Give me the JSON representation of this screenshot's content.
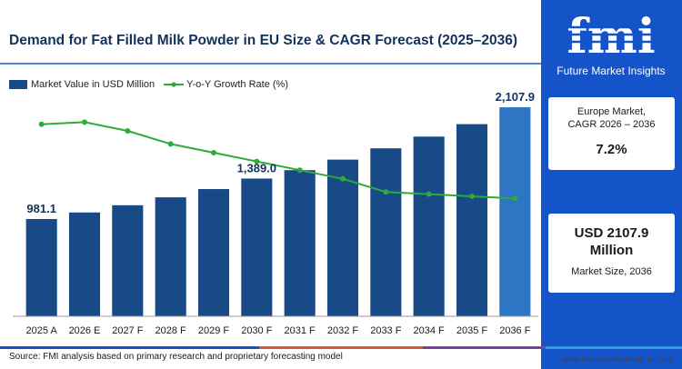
{
  "title": "Demand for Fat Filled Milk Powder in EU Size & CAGR Forecast (2025–2036)",
  "colors": {
    "bar": "#174a87",
    "bar_highlight": "#2e75c4",
    "line": "#2eaa3a",
    "panel": "#1553c9"
  },
  "chart_data": {
    "type": "bar",
    "categories": [
      "2025 A",
      "2026 E",
      "2027 F",
      "2028 F",
      "2029 F",
      "2030 F",
      "2031 F",
      "2032 F",
      "2033 F",
      "2034 F",
      "2035 F",
      "2036 F"
    ],
    "series": [
      {
        "name": "Market Value in USD Million",
        "type": "bar",
        "values": [
          981.1,
          1047,
          1120,
          1200,
          1283,
          1389.0,
          1474,
          1580,
          1694,
          1812,
          1938,
          2107.9
        ]
      },
      {
        "name": "Y-o-Y Growth Rate (%)",
        "type": "line",
        "values": [
          8.8,
          8.9,
          8.5,
          7.9,
          7.5,
          7.1,
          6.7,
          6.3,
          5.7,
          5.6,
          5.5,
          5.4
        ]
      }
    ],
    "data_labels": [
      {
        "index": 0,
        "text": "981.1"
      },
      {
        "index": 5,
        "text": "1,389.0"
      },
      {
        "index": 11,
        "text": "2,107.9"
      }
    ],
    "highlight_index": 11,
    "ylim": [
      0,
      2200
    ],
    "y2lim": [
      0,
      10
    ],
    "grid": false,
    "legend_position": "top-left"
  },
  "brand": {
    "logo_text": "fmi",
    "tagline": "Future Market Insights"
  },
  "cards": {
    "cagr_label_line1": "Europe Market,",
    "cagr_label_line2": "CAGR 2026 – 2036",
    "cagr_value": "7.2%",
    "size_value_line1": "USD 2107.9",
    "size_value_line2": "Million",
    "size_label": "Market Size, 2036"
  },
  "footer": {
    "source": "Source: FMI analysis based on primary research and proprietary forecasting model",
    "website": "www.futuremarketinsights.com"
  }
}
